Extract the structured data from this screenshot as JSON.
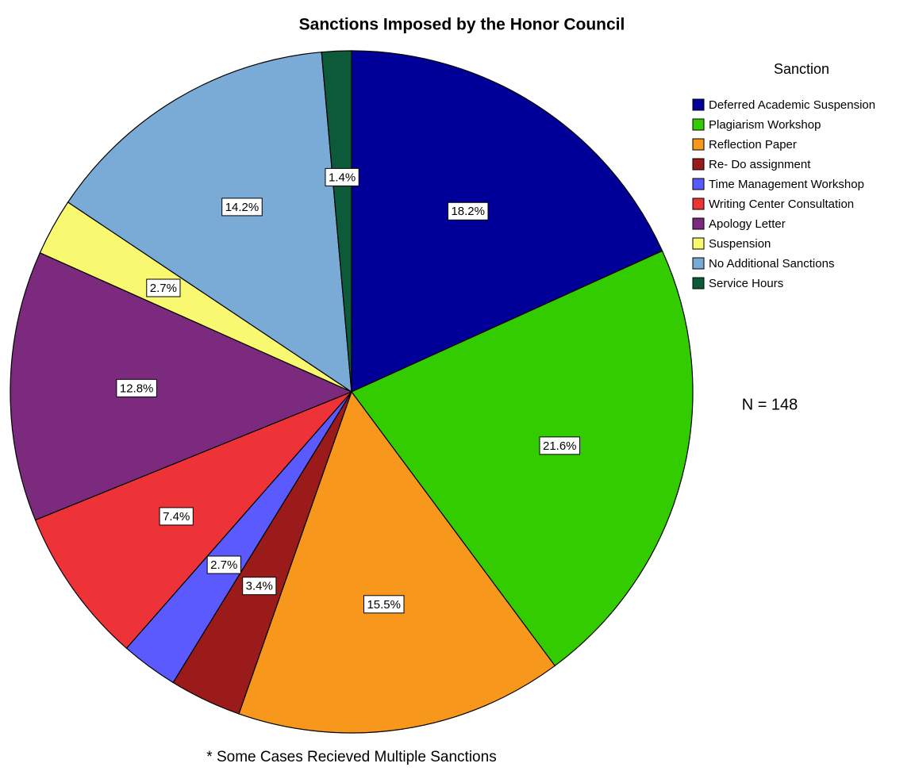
{
  "chart_data": {
    "type": "pie",
    "title": "Sanctions Imposed by the Honor Council",
    "legend_title": "Sanction",
    "categories": [
      "Deferred Academic Suspension",
      "Plagiarism Workshop",
      "Reflection Paper",
      "Re- Do assignment",
      "Time Management Workshop",
      "Writing Center Consultation",
      "Apology Letter",
      "Suspension",
      "No Additional Sanctions",
      "Service Hours"
    ],
    "values": [
      18.2,
      21.6,
      15.5,
      3.4,
      2.7,
      7.4,
      12.8,
      2.7,
      14.2,
      1.4
    ],
    "value_labels": [
      "18.2%",
      "21.6%",
      "15.5%",
      "3.4%",
      "2.7%",
      "7.4%",
      "12.8%",
      "2.7%",
      "14.2%",
      "1.4%"
    ],
    "colors": [
      "#000099",
      "#33cc00",
      "#f7981d",
      "#9b1a1a",
      "#5a5aff",
      "#ee3338",
      "#7b2a7e",
      "#f9f871",
      "#7aaad6",
      "#0d5a3a"
    ],
    "annotations": [
      "N = 148",
      "* Some Cases Recieved Multiple Sanctions"
    ],
    "legend": "right"
  }
}
